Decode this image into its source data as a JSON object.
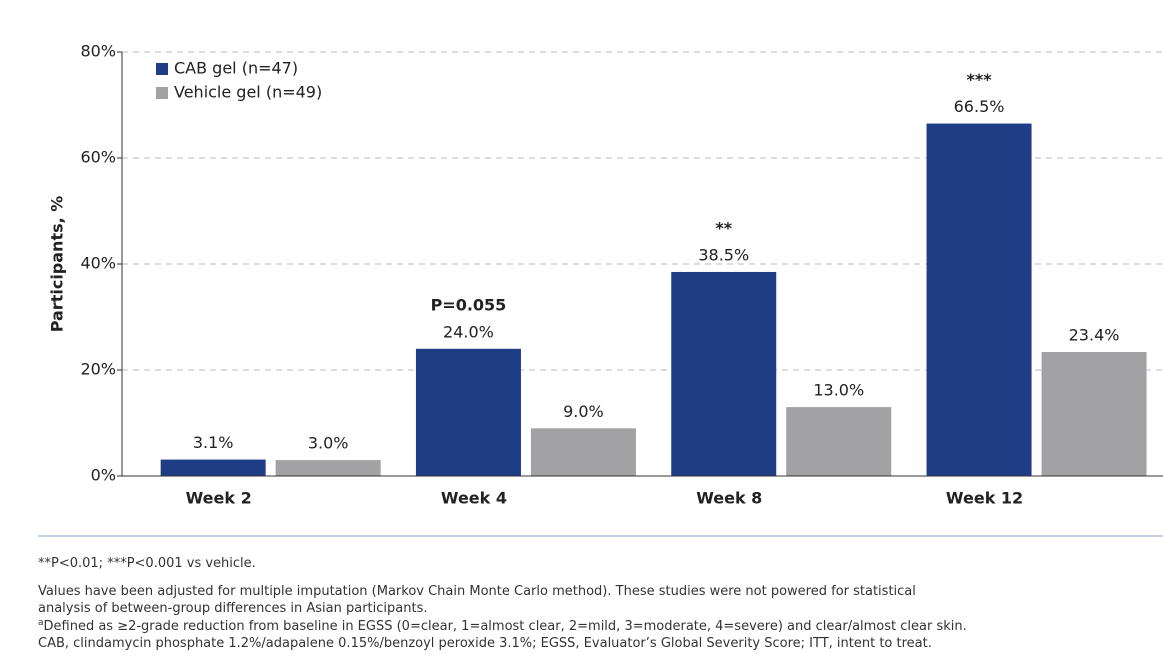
{
  "chart_data": {
    "type": "bar",
    "y_label": "Participants, %",
    "categories": [
      "Week 2",
      "Week 4",
      "Week 8",
      "Week 12"
    ],
    "series": [
      {
        "name": "CAB gel (n=47)",
        "color": "#1f3d84",
        "label_color": "#1f3d84",
        "values": [
          3.1,
          24.0,
          38.5,
          66.5
        ],
        "value_labels": [
          "3.1%",
          "24.0%",
          "38.5%",
          "66.5%"
        ],
        "annotations": [
          null,
          "P=0.055",
          "**",
          "***"
        ]
      },
      {
        "name": "Vehicle gel (n=49)",
        "color": "#a2a2a4",
        "label_color": "#9a9a9c",
        "values": [
          3.0,
          9.0,
          13.0,
          23.4
        ],
        "value_labels": [
          "3.0%",
          "9.0%",
          "13.0%",
          "23.4%"
        ]
      }
    ],
    "ylim": [
      0,
      80
    ],
    "yticks": [
      {
        "value": 0,
        "label": "0%"
      },
      {
        "value": 20,
        "label": "20%"
      },
      {
        "value": 40,
        "label": "40%"
      },
      {
        "value": 60,
        "label": "60%"
      },
      {
        "value": 80,
        "label": "80%"
      }
    ],
    "grid": true,
    "legend": "top-left",
    "footnotes": [
      "**P<0.01; ***P<0.001 vs vehicle.",
      "Values have been adjusted for multiple imputation (Markov Chain Monte Carlo method). These studies were not powered for statistical",
      "analysis of between-group differences in Asian participants.",
      "Defined as ≥2-grade reduction from baseline in EGSS (0=clear, 1=almost clear, 2=mild, 3=moderate, 4=severe) and clear/almost clear skin.",
      "CAB, clindamycin phosphate 1.2%/adapalene 0.15%/benzoyl peroxide 3.1%; EGSS, Evaluator’s Global Severity Score; ITT, intent to treat."
    ],
    "footnote_marker": "a"
  }
}
